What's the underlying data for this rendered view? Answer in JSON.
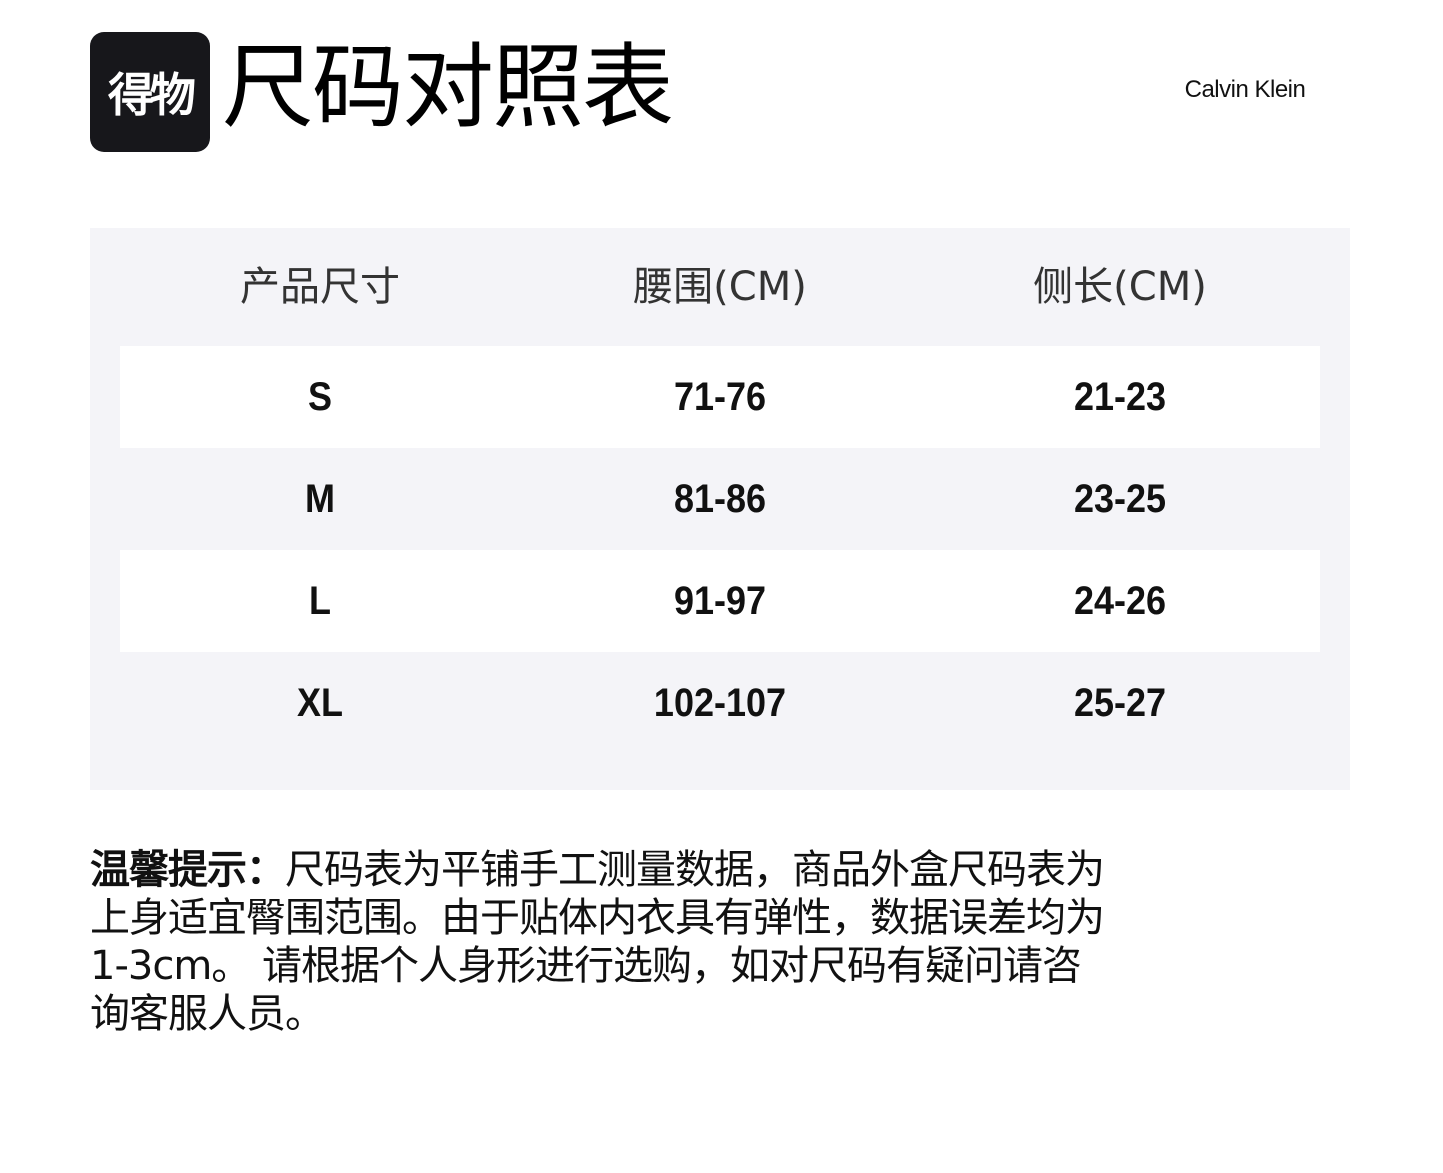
{
  "header": {
    "logo_text": "得物",
    "title": "尺码对照表",
    "brand": "Calvin Klein"
  },
  "table": {
    "columns": [
      "产品尺寸",
      "腰围(CM)",
      "侧长(CM)"
    ],
    "rows": [
      [
        "S",
        "71-76",
        "21-23"
      ],
      [
        "M",
        "81-86",
        "23-25"
      ],
      [
        "L",
        "91-97",
        "24-26"
      ],
      [
        "XL",
        "102-107",
        "25-27"
      ]
    ]
  },
  "note": {
    "label": "温馨提示：",
    "lines": [
      "尺码表为平铺手工测量数据，商品外盒尺码表为",
      "上身适宜臀围范围。由于贴体内衣具有弹性，数据误差均为",
      "1-3cm。 请根据个人身形进行选购，如对尺码有疑问请咨",
      "询客服人员。"
    ]
  }
}
